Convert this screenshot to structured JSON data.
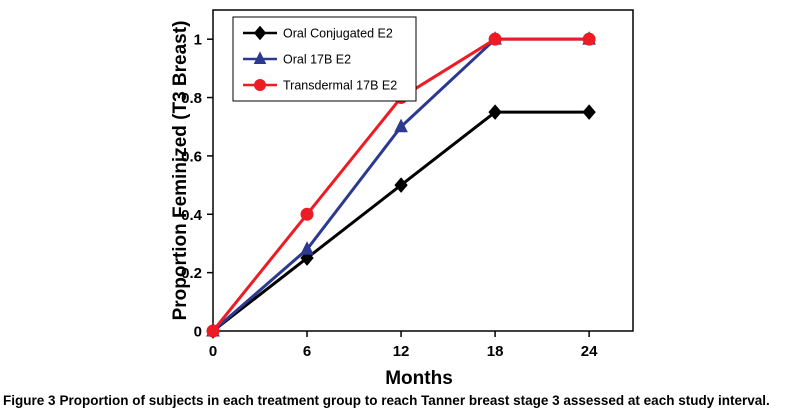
{
  "figure": {
    "caption_label": "Figure 3",
    "caption_text": "Proportion of subjects in each treatment group to reach Tanner breast stage 3 assessed at each study interval."
  },
  "chart_data": {
    "type": "line",
    "x": [
      0,
      6,
      12,
      18,
      24
    ],
    "series": [
      {
        "name": "Oral Conjugated E2",
        "values": [
          0,
          0.25,
          0.5,
          0.75,
          0.75
        ],
        "color": "#000000",
        "marker": "diamond"
      },
      {
        "name": "Oral 17B E2",
        "values": [
          0,
          0.28,
          0.7,
          1,
          1
        ],
        "color": "#2B3990",
        "marker": "triangle"
      },
      {
        "name": "Transdermal 17B E2",
        "values": [
          0,
          0.4,
          0.8,
          1,
          1
        ],
        "color": "#ED1C24",
        "marker": "circle"
      }
    ],
    "title": "",
    "xlabel": "Months",
    "ylabel": "Proportion Feminized (T3 Breast)",
    "xticks": [
      0,
      6,
      12,
      18,
      24
    ],
    "yticks": [
      0,
      0.2,
      0.4,
      0.6,
      0.8,
      1
    ],
    "xlim": [
      0,
      26.8
    ],
    "ylim": [
      0,
      1.1
    ],
    "grid": false,
    "legend_position": "top-left",
    "colors": {
      "axis": "#000000",
      "plot_border": "#000000",
      "background": "#ffffff"
    }
  }
}
